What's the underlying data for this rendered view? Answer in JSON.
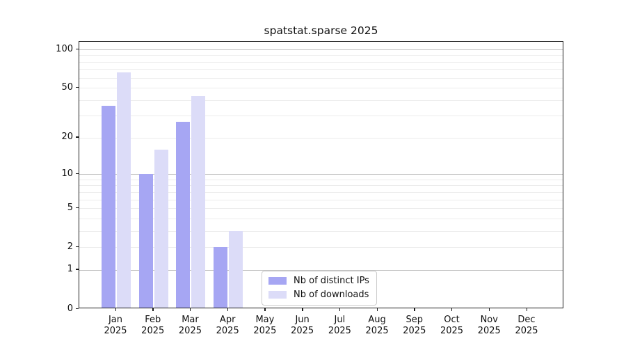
{
  "chart_data": {
    "type": "bar",
    "title": "spatstat.sparse 2025",
    "categories": [
      "Jan",
      "Feb",
      "Mar",
      "Apr",
      "May",
      "Jun",
      "Jul",
      "Aug",
      "Sep",
      "Oct",
      "Nov",
      "Dec"
    ],
    "x_year": "2025",
    "series": [
      {
        "name": "Nb of distinct IPs",
        "color": "#a6a6f3",
        "values": [
          36,
          10,
          27,
          2,
          0,
          0,
          0,
          0,
          0,
          0,
          0,
          0
        ]
      },
      {
        "name": "Nb of downloads",
        "color": "#dcdcf8",
        "values": [
          66,
          16,
          43,
          3,
          0,
          0,
          0,
          0,
          0,
          0,
          0,
          0
        ]
      }
    ],
    "yscale": "log1p",
    "ylim": [
      0,
      100
    ],
    "yticks": [
      100,
      50,
      20,
      10,
      5,
      2,
      1,
      0
    ],
    "minor_gridlines": [
      2,
      3,
      4,
      5,
      6,
      7,
      8,
      9,
      20,
      30,
      40,
      50,
      60,
      70,
      80,
      90
    ],
    "major_gridlines": [
      1,
      10,
      100
    ],
    "grid": true,
    "legend_position": "lower center",
    "xlabel": "",
    "ylabel": ""
  }
}
